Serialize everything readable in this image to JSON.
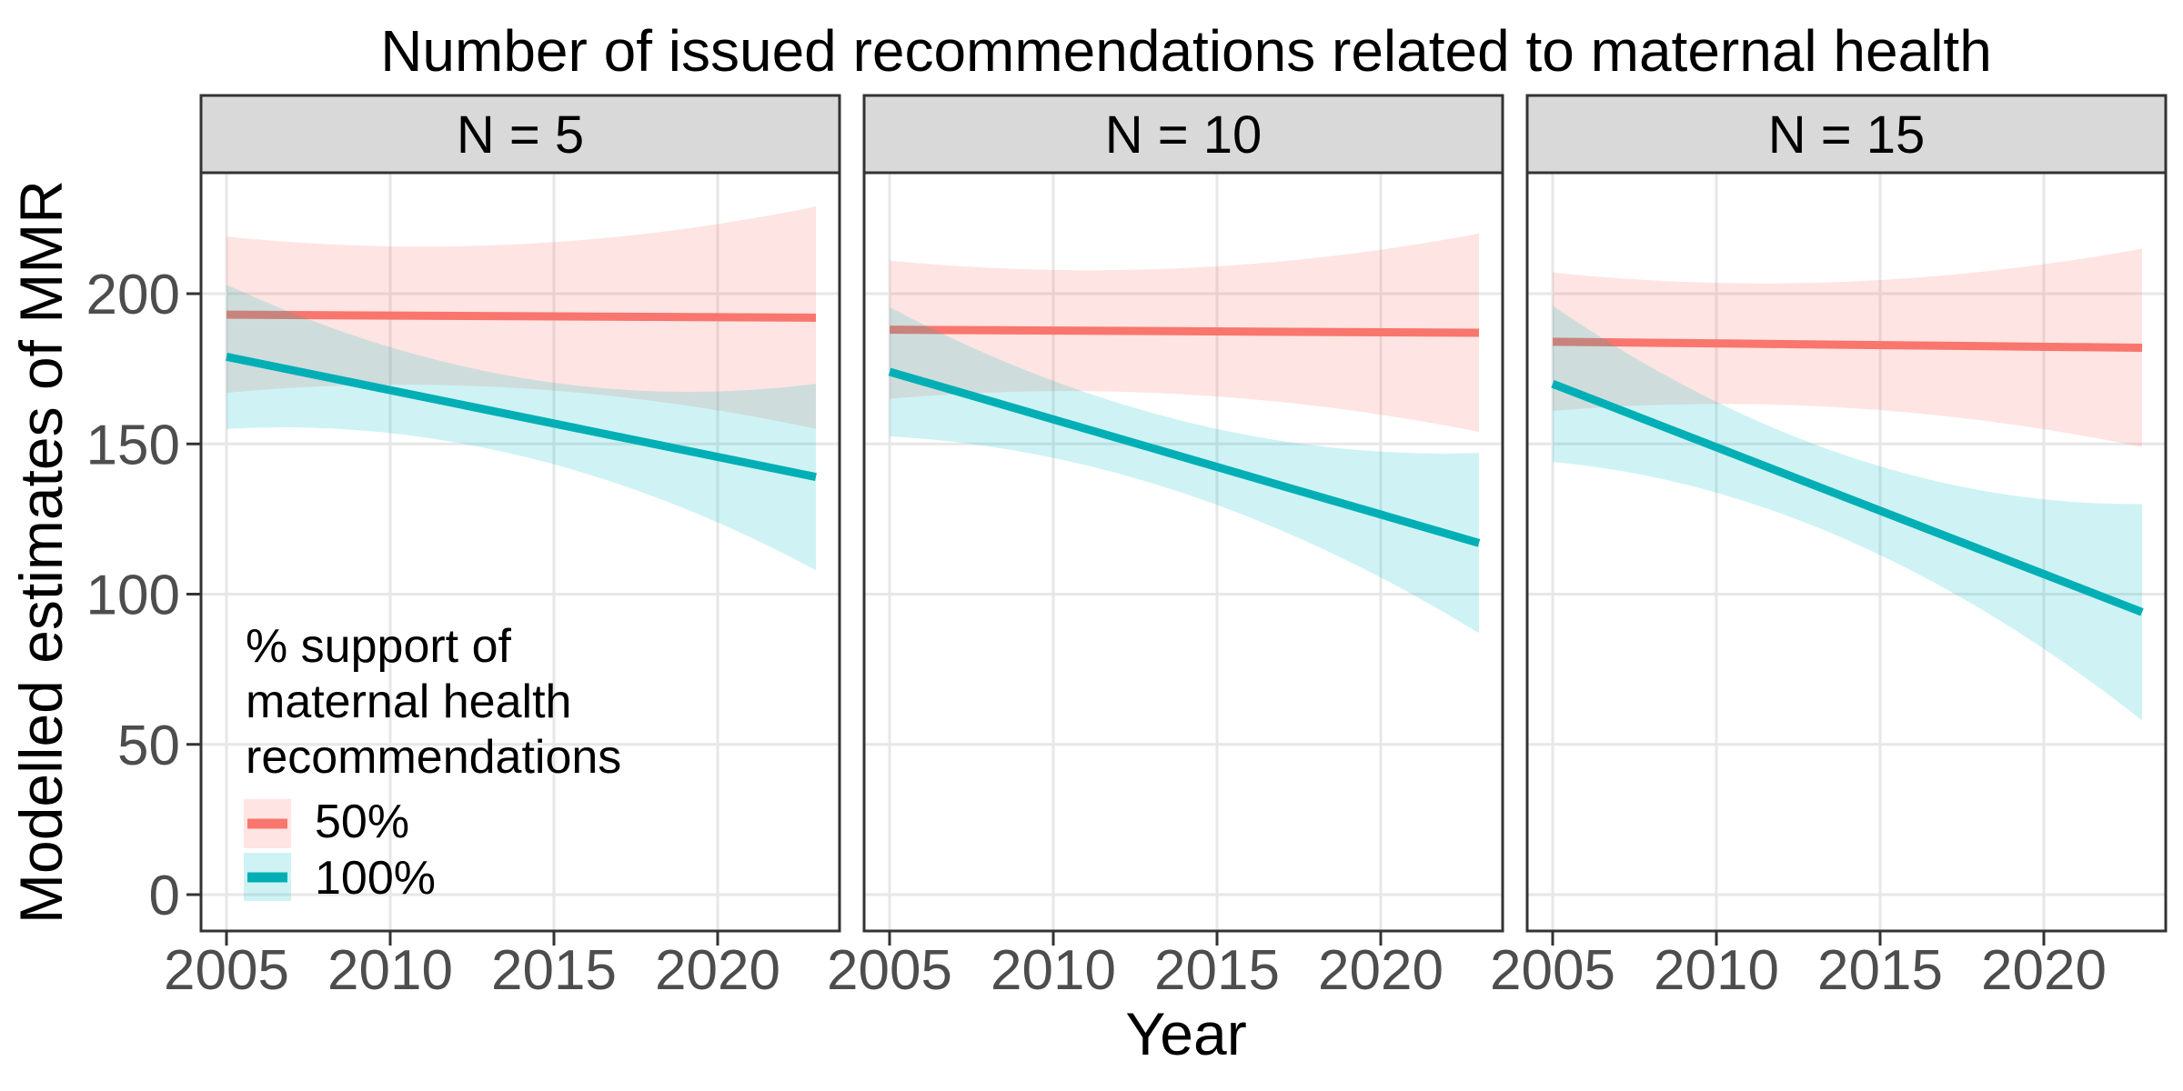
{
  "chart_data": {
    "type": "line",
    "title": "Number of issued recommendations related to maternal health",
    "xlabel": "Year",
    "ylabel": "Modelled estimates of MMR",
    "x_domain": [
      2005,
      2023
    ],
    "y_domain_shown": [
      0,
      230
    ],
    "x_ticks": [
      2005,
      2010,
      2015,
      2020
    ],
    "y_ticks": [
      0,
      50,
      100,
      150,
      200
    ],
    "grid": "major-only",
    "legend_position": "inside-bottom-left-of-first-panel",
    "legend": {
      "title_lines": [
        "% support of",
        "maternal health",
        "recommendations"
      ],
      "entries": [
        {
          "label": "50%",
          "color_key": "50"
        },
        {
          "label": "100%",
          "color_key": "100"
        }
      ]
    },
    "facets": [
      {
        "label": "N = 5",
        "series": [
          {
            "name": "50%",
            "color_key": "50",
            "x": [
              2005,
              2023
            ],
            "y": [
              193,
              192
            ],
            "ci_halfwidth": [
              26,
              24,
              37
            ]
          },
          {
            "name": "100%",
            "color_key": "100",
            "x": [
              2005,
              2023
            ],
            "y": [
              179,
              139
            ],
            "ci_halfwidth": [
              24,
              13,
              31
            ]
          }
        ]
      },
      {
        "label": "N = 10",
        "series": [
          {
            "name": "50%",
            "color_key": "50",
            "x": [
              2005,
              2023
            ],
            "y": [
              188,
              187
            ],
            "ci_halfwidth": [
              23,
              21,
              33
            ]
          },
          {
            "name": "100%",
            "color_key": "100",
            "x": [
              2005,
              2023
            ],
            "y": [
              174,
              117
            ],
            "ci_halfwidth": [
              21.5,
              12,
              30
            ]
          }
        ]
      },
      {
        "label": "N = 15",
        "series": [
          {
            "name": "50%",
            "color_key": "50",
            "x": [
              2005,
              2023
            ],
            "y": [
              184,
              182
            ],
            "ci_halfwidth": [
              23,
              21,
              33
            ]
          },
          {
            "name": "100%",
            "color_key": "100",
            "x": [
              2005,
              2023
            ],
            "y": [
              170,
              94
            ],
            "ci_halfwidth": [
              26,
              14,
              36
            ]
          }
        ]
      }
    ],
    "colors": {
      "line_50": "#F8766D",
      "line_100": "#00AFB5",
      "band_50": "rgba(248,118,109,0.20)",
      "band_100": "rgba(0,191,196,0.19)",
      "grid": "#E7E7E7",
      "panel_border": "#333333",
      "strip_fill": "#D9D9D9",
      "tick_label": "#4D4D4D",
      "background": "#FFFFFF"
    }
  }
}
